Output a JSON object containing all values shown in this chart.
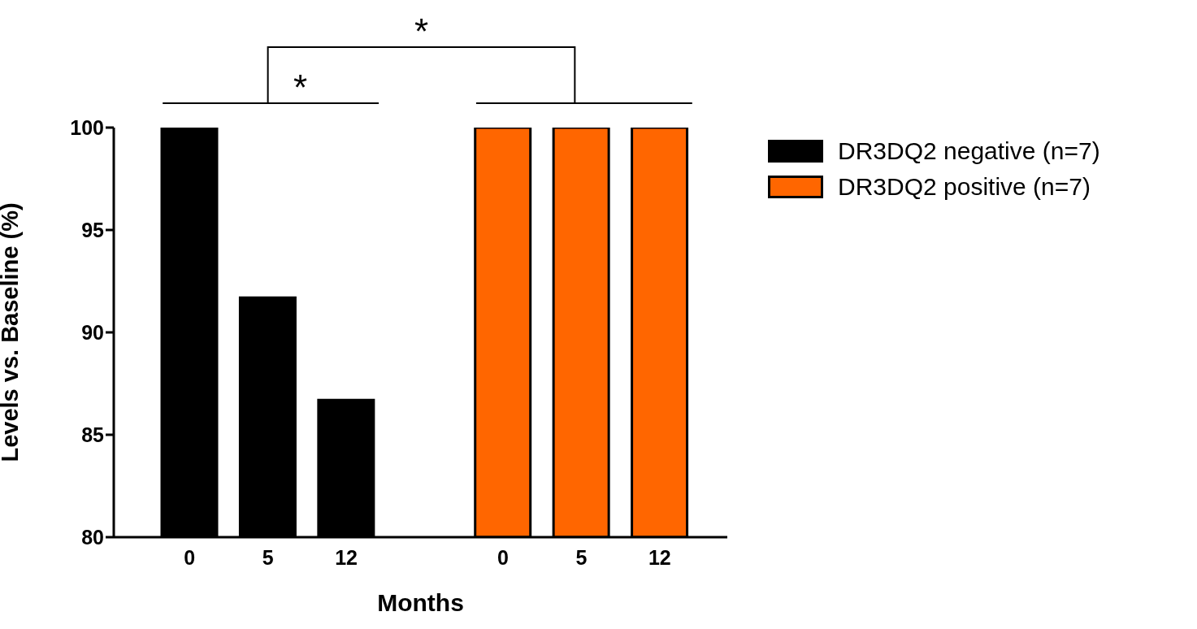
{
  "chart_data": {
    "type": "bar",
    "xlabel": "Months",
    "ylabel": "Levels vs. Baseline (%)",
    "categories": [
      "0",
      "5",
      "12",
      null,
      "0",
      "5",
      "12"
    ],
    "series": [
      {
        "name": "DR3DQ2 negative (n=7)",
        "color": "#000000",
        "values": [
          100,
          91.7,
          86.7,
          null,
          null,
          null,
          null
        ]
      },
      {
        "name": "DR3DQ2 positive (n=7)",
        "color": "#ff6600",
        "values": [
          null,
          null,
          null,
          null,
          100,
          100,
          100
        ]
      }
    ],
    "ylim": [
      80,
      100
    ],
    "yticks": [
      80,
      85,
      90,
      95,
      100
    ],
    "grid": false,
    "legend": "right",
    "annotations": [
      "*",
      "*"
    ]
  }
}
